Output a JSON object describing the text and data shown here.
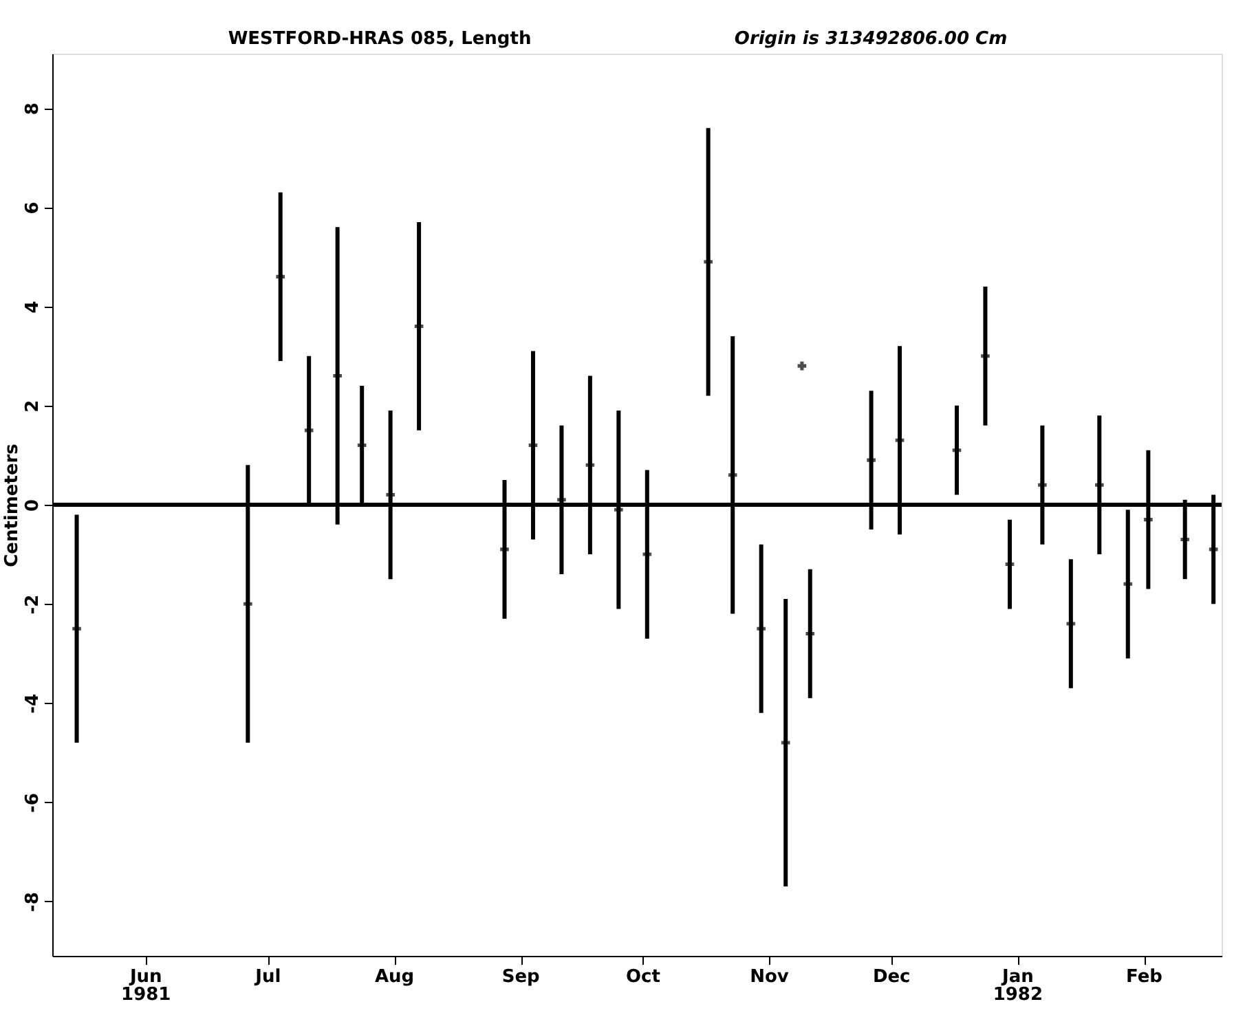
{
  "chart_data": {
    "type": "scatter",
    "title": "WESTFORD-HRAS 085, Length",
    "subtitle": "Origin is 313492806.00 Cm",
    "ylabel": "Centimeters",
    "x": [
      "1981-05-15",
      "1981-06-26",
      "1981-07-04",
      "1981-07-11",
      "1981-07-18",
      "1981-07-24",
      "1981-07-31",
      "1981-08-07",
      "1981-08-28",
      "1981-09-04",
      "1981-09-11",
      "1981-09-18",
      "1981-09-25",
      "1981-10-02",
      "1981-10-17",
      "1981-10-23",
      "1981-10-30",
      "1981-11-05",
      "1981-11-09",
      "1981-11-11",
      "1981-11-26",
      "1981-12-03",
      "1981-12-17",
      "1981-12-24",
      "1981-12-30",
      "1982-01-07",
      "1982-01-14",
      "1982-01-21",
      "1982-01-28",
      "1982-02-02",
      "1982-02-11",
      "1982-02-18"
    ],
    "values": [
      -2.5,
      -2.0,
      4.6,
      1.5,
      2.6,
      1.2,
      0.2,
      3.6,
      -0.9,
      1.2,
      0.1,
      0.8,
      -0.1,
      -1.0,
      4.9,
      0.6,
      -2.5,
      -4.8,
      2.8,
      -2.6,
      0.9,
      1.3,
      1.1,
      3.0,
      -1.2,
      0.4,
      -2.4,
      0.4,
      -1.6,
      -0.3,
      -0.7,
      -0.9
    ],
    "errors": [
      2.3,
      2.8,
      1.7,
      1.5,
      3.0,
      1.2,
      1.7,
      2.1,
      1.4,
      1.9,
      1.5,
      1.8,
      2.0,
      1.7,
      2.7,
      2.8,
      1.7,
      2.9,
      null,
      1.3,
      1.4,
      1.9,
      0.9,
      1.4,
      0.9,
      1.2,
      1.3,
      1.4,
      1.5,
      1.4,
      0.8,
      1.1
    ],
    "color": "#000000",
    "marker": "cross",
    "grid": false,
    "xlim": [
      "1981-05-09",
      "1982-02-20"
    ],
    "xticks": [
      {
        "value": "1981-06-01",
        "label": "Jun 1981"
      },
      {
        "value": "1981-07-01",
        "label": "Jul"
      },
      {
        "value": "1981-08-01",
        "label": "Aug"
      },
      {
        "value": "1981-09-01",
        "label": "Sep"
      },
      {
        "value": "1981-10-01",
        "label": "Oct"
      },
      {
        "value": "1981-11-01",
        "label": "Nov"
      },
      {
        "value": "1981-12-01",
        "label": "Dec"
      },
      {
        "value": "1982-01-01",
        "label": "Jan 1982"
      },
      {
        "value": "1982-02-01",
        "label": "Feb"
      }
    ],
    "ylim": [
      -9.1,
      9.1
    ],
    "yticks": [
      -8,
      -6,
      -4,
      -2,
      0,
      2,
      4,
      6,
      8
    ],
    "ref_lines": [
      {
        "axis": "y",
        "value": 0,
        "color": "#000000"
      }
    ]
  }
}
